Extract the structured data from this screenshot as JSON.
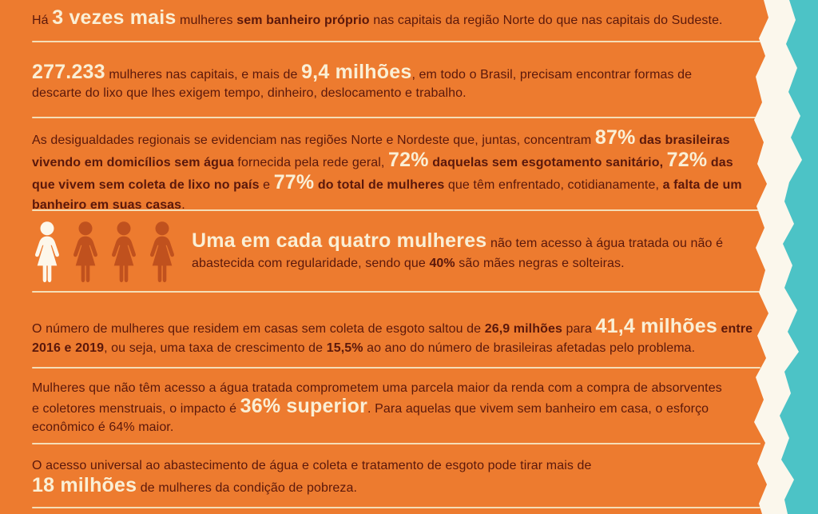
{
  "colors": {
    "background": "#ED7B2F",
    "text_dark": "#5B180B",
    "highlight_cream": "#FAEFD5",
    "separator": "#F5E6C3",
    "torn_white": "#FBF7EC",
    "teal": "#4CC3C6",
    "icon_light": "#FDF7EA",
    "icon_dark": "#C0511E"
  },
  "icons": {
    "women_pictograms": [
      "light",
      "dark",
      "dark",
      "dark"
    ],
    "meaning": "uma em cada quatro mulheres"
  },
  "paragraphs": [
    {
      "name": "stat-3x-banheiro",
      "segments": [
        {
          "t": "Há ",
          "s": "r"
        },
        {
          "t": "3 vezes mais",
          "s": "big"
        },
        {
          "t": " mulheres ",
          "s": "r"
        },
        {
          "t": "sem banheiro próprio",
          "s": "b"
        },
        {
          "t": " nas capitais da região Norte do que nas capitais do Sudeste.",
          "s": "r"
        }
      ]
    },
    {
      "name": "stat-277233-lixo",
      "segments": [
        {
          "t": "277.233",
          "s": "big"
        },
        {
          "t": " mulheres nas capitais, e mais de ",
          "s": "r"
        },
        {
          "t": "9,4 milhões",
          "s": "big"
        },
        {
          "t": ", em todo o Brasil, precisam encontrar formas de",
          "s": "r"
        },
        {
          "br": true
        },
        {
          "t": "descarte do lixo que lhes exigem tempo, dinheiro, deslocamento e trabalho.",
          "s": "r"
        }
      ]
    },
    {
      "name": "desigualdades-regionais",
      "segments": [
        {
          "t": "As desigualdades regionais se evidenciam nas regiões Norte e Nordeste que, juntas, concentram ",
          "s": "r"
        },
        {
          "t": "87%",
          "s": "big"
        },
        {
          "t": " ",
          "s": "r"
        },
        {
          "t": "das brasileiras",
          "s": "b"
        },
        {
          "br": true
        },
        {
          "t": "vivendo em domicílios sem água",
          "s": "b"
        },
        {
          "t": " fornecida pela rede geral, ",
          "s": "r"
        },
        {
          "t": "72%",
          "s": "big"
        },
        {
          "t": " ",
          "s": "r"
        },
        {
          "t": "daquelas sem esgotamento sanitário,",
          "s": "b"
        },
        {
          "t": " ",
          "s": "r"
        },
        {
          "t": "72%",
          "s": "big"
        },
        {
          "t": " ",
          "s": "r"
        },
        {
          "t": "das",
          "s": "b"
        },
        {
          "br": true
        },
        {
          "t": "que vivem sem coleta de lixo no país",
          "s": "b"
        },
        {
          "t": " e ",
          "s": "r"
        },
        {
          "t": "77%",
          "s": "big"
        },
        {
          "t": " ",
          "s": "r"
        },
        {
          "t": "do total de mulheres",
          "s": "b"
        },
        {
          "t": " que têm enfrentado, cotidianamente, ",
          "s": "r"
        },
        {
          "t": "a falta de um",
          "s": "b"
        },
        {
          "br": true
        },
        {
          "t": "banheiro em suas casas",
          "s": "b"
        },
        {
          "t": ".",
          "s": "r"
        }
      ]
    },
    {
      "name": "uma-em-cada-quatro",
      "segments": [
        {
          "t": "Uma em cada quatro mulheres",
          "s": "big"
        },
        {
          "t": " não tem acesso à água tratada ou não é",
          "s": "r"
        },
        {
          "br": true
        },
        {
          "t": "abastecida com regularidade, sendo que ",
          "s": "r"
        },
        {
          "t": "40%",
          "s": "b"
        },
        {
          "t": " são mães negras e solteiras.",
          "s": "r"
        }
      ]
    },
    {
      "name": "crescimento-sem-esgoto",
      "segments": [
        {
          "t": "O número de mulheres que residem em casas sem coleta de esgoto saltou de ",
          "s": "r"
        },
        {
          "t": "26,9 milhões",
          "s": "b"
        },
        {
          "t": " para ",
          "s": "r"
        },
        {
          "t": "41,4 milhões",
          "s": "big"
        },
        {
          "t": " ",
          "s": "r"
        },
        {
          "t": "entre",
          "s": "b"
        },
        {
          "br": true
        },
        {
          "t": "2016 e 2019",
          "s": "b"
        },
        {
          "t": ", ou seja, uma taxa de crescimento de ",
          "s": "r"
        },
        {
          "t": "15,5%",
          "s": "b"
        },
        {
          "t": " ao ano do número de brasileiras afetadas pelo problema.",
          "s": "r"
        }
      ]
    },
    {
      "name": "impacto-renda",
      "segments": [
        {
          "t": "Mulheres que não têm acesso a água tratada comprometem uma parcela maior da renda com a compra de absorventes",
          "s": "r"
        },
        {
          "br": true
        },
        {
          "t": "e coletores menstruais, o impacto é ",
          "s": "r"
        },
        {
          "t": "36% superior",
          "s": "big"
        },
        {
          "t": ". Para aquelas que vivem sem banheiro em casa, o esforço",
          "s": "r"
        },
        {
          "br": true
        },
        {
          "t": "econômico é 64% maior.",
          "s": "r"
        }
      ]
    },
    {
      "name": "acesso-universal-pobreza",
      "segments": [
        {
          "t": "O acesso universal ao abastecimento de água e coleta e tratamento de esgoto pode tirar mais de",
          "s": "r"
        },
        {
          "br": true
        },
        {
          "t": "18 milhões",
          "s": "big"
        },
        {
          "t": " de mulheres da condição de pobreza.",
          "s": "r"
        }
      ]
    }
  ]
}
